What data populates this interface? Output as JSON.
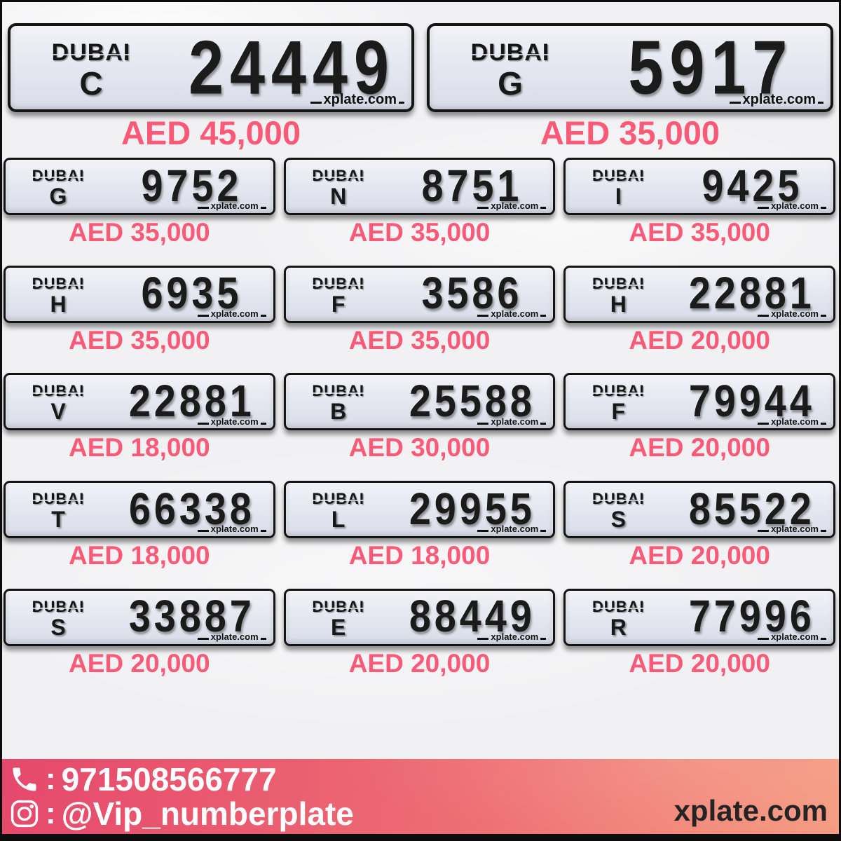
{
  "brand": "DUBAI",
  "watermark": "xplate.com",
  "colors": {
    "accent_pink": "#fa5a78",
    "plate_text": "#1b1b1b",
    "footer_gradient_left": "#e5486c",
    "footer_gradient_right": "#f59c82",
    "page_background": "#f1f1f3"
  },
  "featured_plates": [
    {
      "code": "C",
      "number": "24449",
      "price": "AED 45,000"
    },
    {
      "code": "G",
      "number": "5917",
      "price": "AED 35,000"
    }
  ],
  "grid_plates": [
    {
      "code": "G",
      "number": "9752",
      "price": "AED 35,000"
    },
    {
      "code": "N",
      "number": "8751",
      "price": "AED 35,000"
    },
    {
      "code": "I",
      "number": "9425",
      "price": "AED 35,000"
    },
    {
      "code": "H",
      "number": "6935",
      "price": "AED 35,000"
    },
    {
      "code": "F",
      "number": "3586",
      "price": "AED 35,000"
    },
    {
      "code": "H",
      "number": "22881",
      "price": "AED 20,000"
    },
    {
      "code": "V",
      "number": "22881",
      "price": "AED 18,000"
    },
    {
      "code": "B",
      "number": "25588",
      "price": "AED 30,000"
    },
    {
      "code": "F",
      "number": "79944",
      "price": "AED 20,000"
    },
    {
      "code": "T",
      "number": "66338",
      "price": "AED 18,000"
    },
    {
      "code": "L",
      "number": "29955",
      "price": "AED 18,000"
    },
    {
      "code": "S",
      "number": "85522",
      "price": "AED 20,000"
    },
    {
      "code": "S",
      "number": "33887",
      "price": "AED 20,000"
    },
    {
      "code": "E",
      "number": "88449",
      "price": "AED 20,000"
    },
    {
      "code": "R",
      "number": "77996",
      "price": "AED 20,000"
    }
  ],
  "footer": {
    "phone_separator": ":",
    "phone_number": "971508566777",
    "instagram_separator": ":",
    "instagram_handle": "@Vip_numberplate",
    "website": "xplate.com",
    "phone_icon": "phone-icon",
    "instagram_icon": "instagram-icon"
  }
}
